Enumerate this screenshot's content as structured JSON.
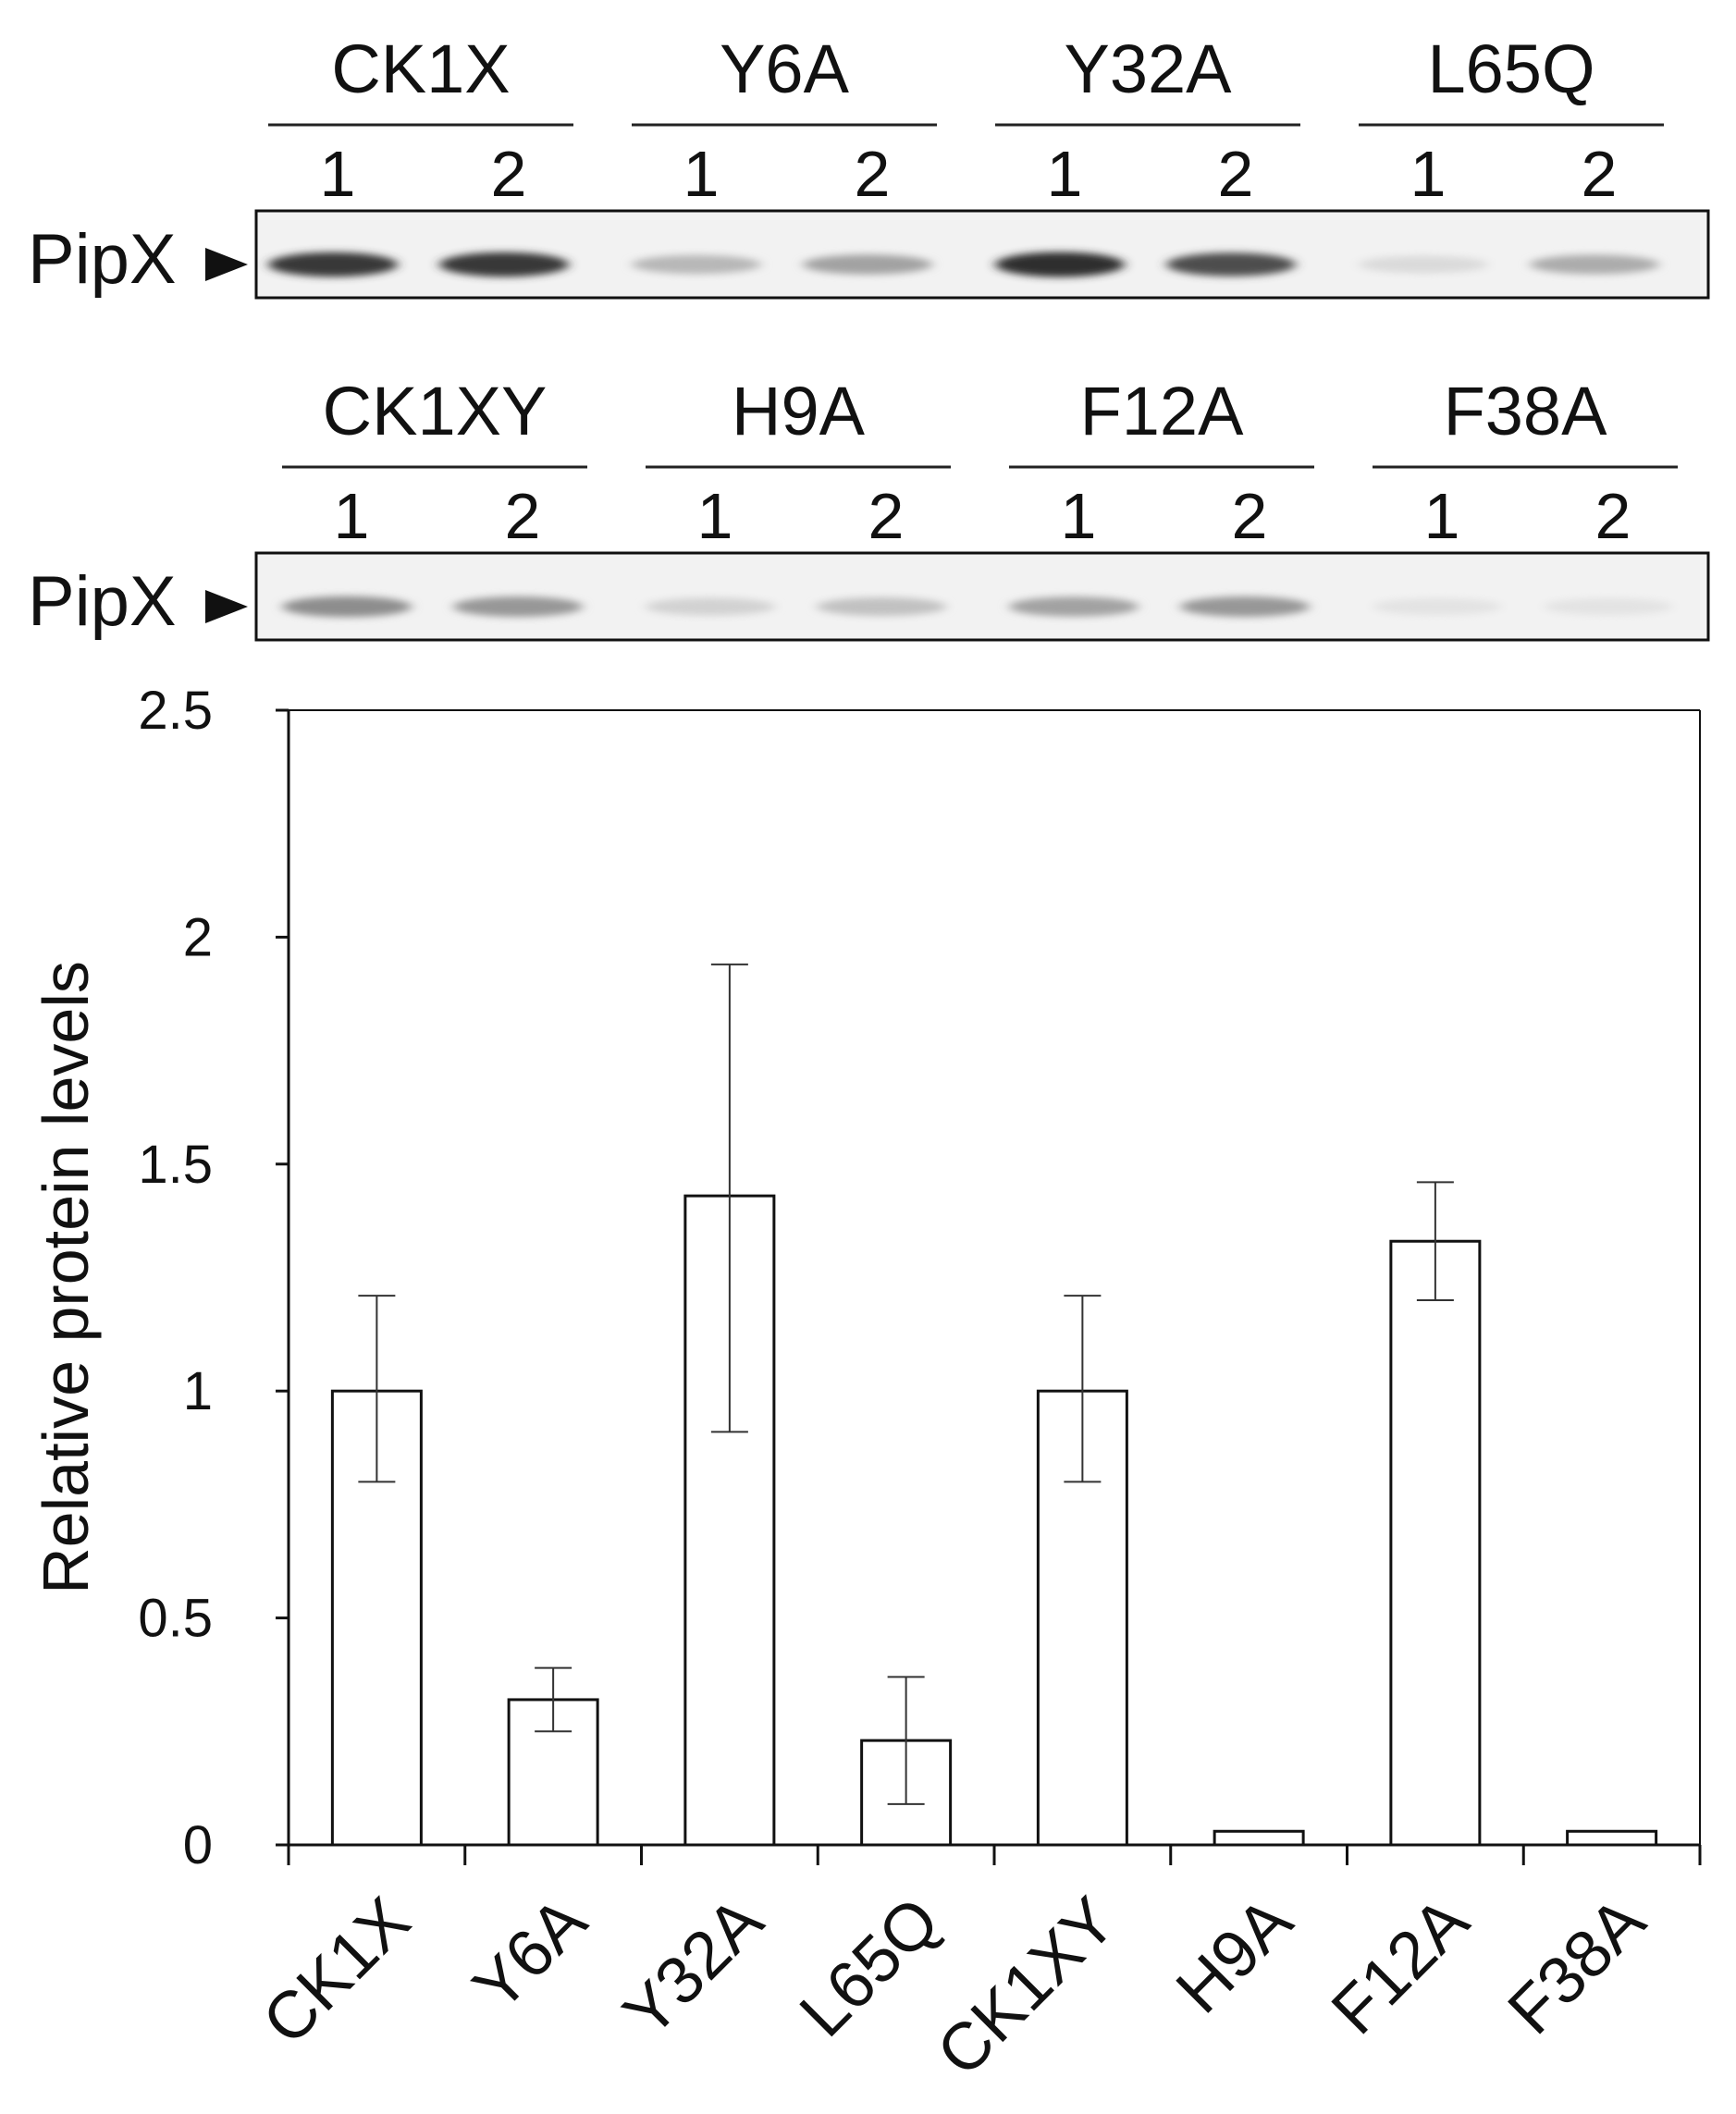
{
  "blots": [
    {
      "band_label": "PipX",
      "lanes": [
        "1",
        "2"
      ],
      "groups": [
        {
          "name": "CK1X",
          "intensities": [
            0.85,
            0.85
          ]
        },
        {
          "name": "Y6A",
          "intensities": [
            0.25,
            0.35
          ]
        },
        {
          "name": "Y32A",
          "intensities": [
            0.9,
            0.75
          ]
        },
        {
          "name": "L65Q",
          "intensities": [
            0.08,
            0.3
          ]
        }
      ]
    },
    {
      "band_label": "PipX",
      "lanes": [
        "1",
        "2"
      ],
      "groups": [
        {
          "name": "CK1XY",
          "intensities": [
            0.45,
            0.4
          ]
        },
        {
          "name": "H9A",
          "intensities": [
            0.12,
            0.2
          ]
        },
        {
          "name": "F12A",
          "intensities": [
            0.35,
            0.4
          ]
        },
        {
          "name": "F38A",
          "intensities": [
            0.04,
            0.04
          ]
        }
      ]
    }
  ],
  "chart_data": {
    "type": "bar",
    "categories": [
      "CK1X",
      "Y6A",
      "Y32A",
      "L65Q",
      "CK1XY",
      "H9A",
      "F12A",
      "F38A"
    ],
    "values": [
      1.0,
      0.32,
      1.43,
      0.23,
      1.0,
      0.03,
      1.33,
      0.03
    ],
    "error_low": [
      0.8,
      0.25,
      0.91,
      0.09,
      0.8,
      null,
      1.2,
      null
    ],
    "error_high": [
      1.21,
      0.39,
      1.94,
      0.37,
      1.21,
      null,
      1.46,
      null
    ],
    "title": "",
    "xlabel": "",
    "ylabel": "Relative protein levels",
    "ylim": [
      0,
      2.5
    ],
    "yticks": [
      "0",
      "0.5",
      "1",
      "1.5",
      "2",
      "2.5"
    ],
    "grid": false,
    "bar_color": "#ffffff",
    "bar_edge_color": "#111111"
  }
}
